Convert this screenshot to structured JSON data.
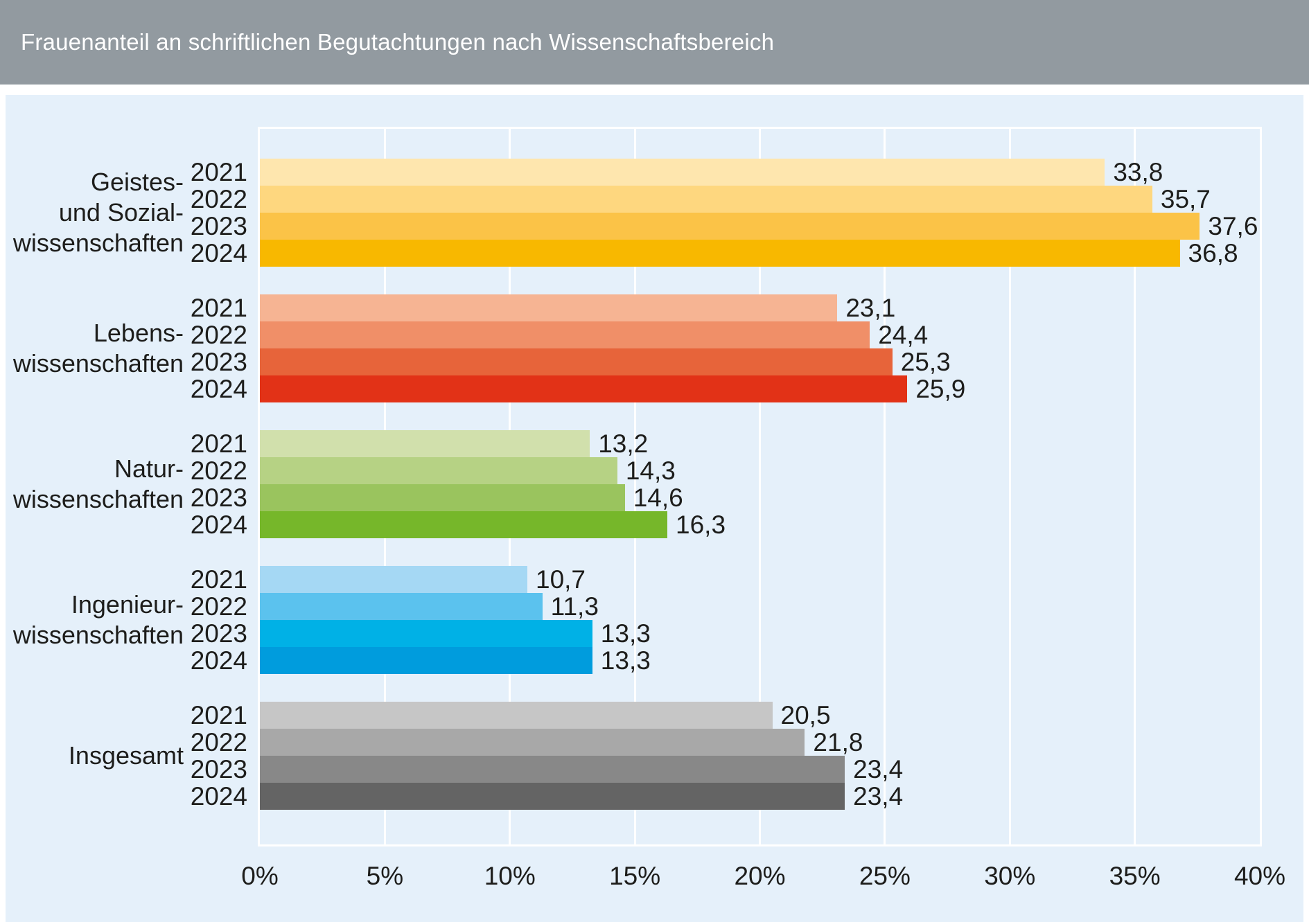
{
  "header": {
    "title": "Frauenanteil an schriftlichen Begutachtungen nach Wissenschaftsbereich"
  },
  "colors": {
    "header_bg": "#929aa0",
    "panel_bg": "#e5f0fa",
    "grid": "#ffffff",
    "text": "#1d1d1b",
    "title_text": "#ffffff"
  },
  "chart_data": {
    "type": "bar",
    "orientation": "horizontal",
    "title": "Frauenanteil an schriftlichen Begutachtungen nach Wissenschaftsbereich",
    "unit": "%",
    "xlim": [
      0,
      40
    ],
    "x_ticks": [
      "0%",
      "5%",
      "10%",
      "15%",
      "20%",
      "25%",
      "30%",
      "35%",
      "40%"
    ],
    "grid": true,
    "value_format": "decimal-comma",
    "categories": [
      "2021",
      "2022",
      "2023",
      "2024"
    ],
    "groups": [
      {
        "name": "Geistes- und Sozialwissenschaften",
        "label_lines": [
          "Geistes-",
          "und Sozial-",
          "wissenschaften"
        ],
        "values": [
          33.8,
          35.7,
          37.6,
          36.8
        ],
        "bar_colors": [
          "#fee6ae",
          "#fed77f",
          "#fbc347",
          "#f8b800"
        ]
      },
      {
        "name": "Lebenswissenschaften",
        "label_lines": [
          "Lebens-",
          "wissenschaften"
        ],
        "values": [
          23.1,
          24.4,
          25.3,
          25.9
        ],
        "bar_colors": [
          "#f6b493",
          "#f08f68",
          "#e7643a",
          "#e23217"
        ]
      },
      {
        "name": "Naturwissenschaften",
        "label_lines": [
          "Natur-",
          "wissenschaften"
        ],
        "values": [
          13.2,
          14.3,
          14.6,
          16.3
        ],
        "bar_colors": [
          "#d1e0ac",
          "#b6d284",
          "#9ac45e",
          "#76b72a"
        ]
      },
      {
        "name": "Ingenieurwissenschaften",
        "label_lines": [
          "Ingenieur-",
          "wissenschaften"
        ],
        "values": [
          10.7,
          11.3,
          13.3,
          13.3
        ],
        "bar_colors": [
          "#a5d8f4",
          "#5bc2ee",
          "#00b1e6",
          "#009cdd"
        ]
      },
      {
        "name": "Insgesamt",
        "label_lines": [
          "Insgesamt"
        ],
        "values": [
          20.5,
          21.8,
          23.4,
          23.4
        ],
        "bar_colors": [
          "#c6c6c6",
          "#a8a8a8",
          "#888888",
          "#646464"
        ]
      }
    ]
  }
}
